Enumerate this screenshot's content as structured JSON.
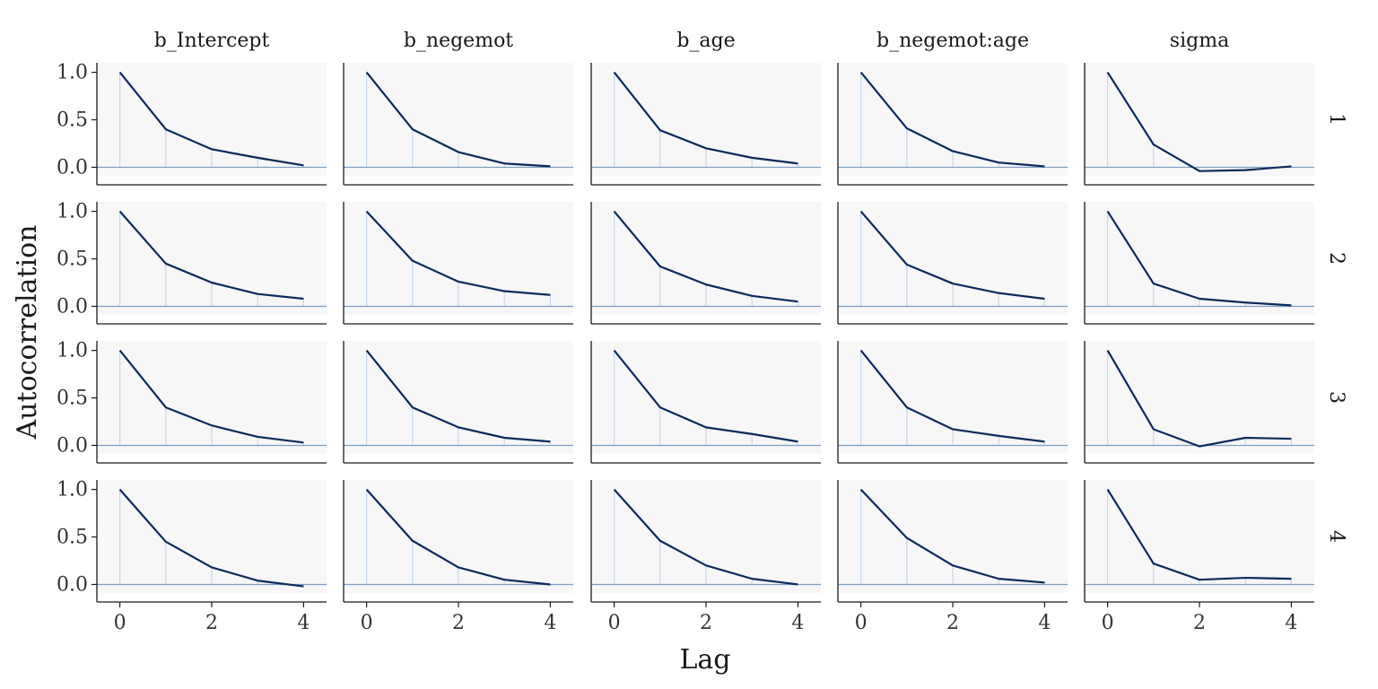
{
  "chart_data": {
    "type": "line",
    "xlabel": "Lag",
    "ylabel": "Autocorrelation",
    "xlim": [
      -0.5,
      4.5
    ],
    "ylim": [
      -0.09,
      1.1
    ],
    "x_ticks": [
      0,
      2,
      4
    ],
    "y_ticks": [
      0.0,
      0.5,
      1.0
    ],
    "y_tick_labels": [
      "0.0",
      "0.5",
      "1.0"
    ],
    "x_tick_labels": [
      "0",
      "2",
      "4"
    ],
    "lags": [
      0,
      1,
      2,
      3,
      4
    ],
    "columns": [
      "b_Intercept",
      "b_negemot",
      "b_age",
      "b_negemot:age",
      "sigma"
    ],
    "rows": [
      "1",
      "2",
      "3",
      "4"
    ],
    "grid": false,
    "colors": {
      "line": "#0b2a5a",
      "stem": "#c6d8ea",
      "hline": "#7d9fc0",
      "panel_bg": "#f7f7f8",
      "axis": "#1a1a1a"
    },
    "panels": [
      [
        [
          1.0,
          0.4,
          0.19,
          0.1,
          0.02
        ],
        [
          1.0,
          0.4,
          0.16,
          0.04,
          0.01
        ],
        [
          1.0,
          0.39,
          0.2,
          0.1,
          0.04
        ],
        [
          1.0,
          0.41,
          0.17,
          0.05,
          0.01
        ],
        [
          1.0,
          0.24,
          -0.04,
          -0.03,
          0.01
        ]
      ],
      [
        [
          1.0,
          0.45,
          0.25,
          0.13,
          0.08
        ],
        [
          1.0,
          0.48,
          0.26,
          0.16,
          0.12
        ],
        [
          1.0,
          0.42,
          0.23,
          0.11,
          0.05
        ],
        [
          1.0,
          0.44,
          0.24,
          0.14,
          0.08
        ],
        [
          1.0,
          0.24,
          0.08,
          0.04,
          0.01
        ]
      ],
      [
        [
          1.0,
          0.4,
          0.21,
          0.09,
          0.03
        ],
        [
          1.0,
          0.4,
          0.19,
          0.08,
          0.04
        ],
        [
          1.0,
          0.4,
          0.19,
          0.12,
          0.04
        ],
        [
          1.0,
          0.4,
          0.17,
          0.1,
          0.04
        ],
        [
          1.0,
          0.17,
          -0.01,
          0.08,
          0.07
        ]
      ],
      [
        [
          1.0,
          0.45,
          0.18,
          0.04,
          -0.02
        ],
        [
          1.0,
          0.46,
          0.18,
          0.05,
          0.0
        ],
        [
          1.0,
          0.46,
          0.2,
          0.06,
          0.0
        ],
        [
          1.0,
          0.49,
          0.2,
          0.06,
          0.02
        ],
        [
          1.0,
          0.22,
          0.05,
          0.07,
          0.06
        ]
      ]
    ]
  }
}
